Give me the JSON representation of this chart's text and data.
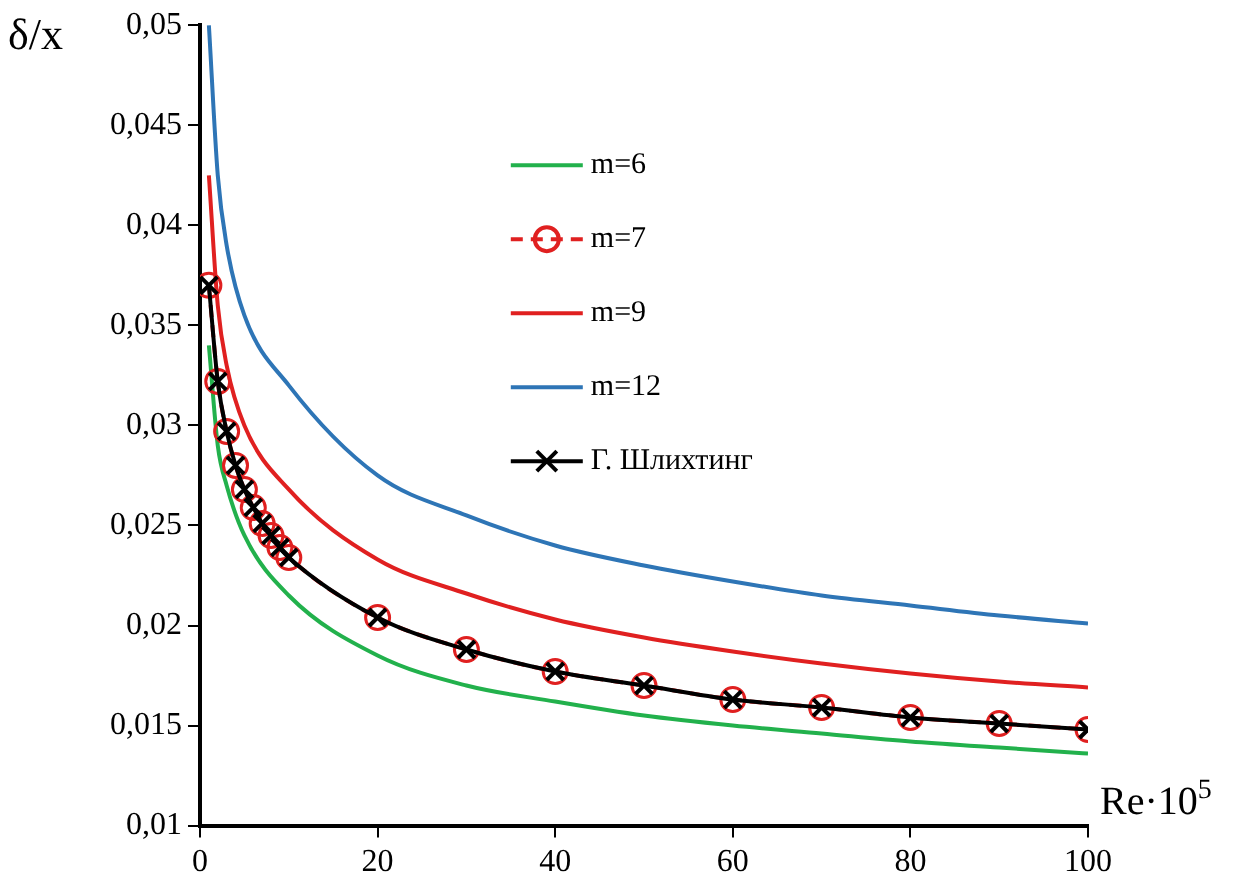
{
  "chart_data": {
    "type": "line",
    "xlabel": "Re·10$^{5}$",
    "ylabel": "δ/x",
    "xlim": [
      0,
      100
    ],
    "xticks": [
      0,
      20,
      40,
      60,
      80,
      100
    ],
    "ylim": [
      0.01,
      0.05
    ],
    "yticks": [
      {
        "value": 0.01,
        "label": "0,01"
      },
      {
        "value": 0.015,
        "label": "0,015"
      },
      {
        "value": 0.02,
        "label": "0,02"
      },
      {
        "value": 0.025,
        "label": "0,025"
      },
      {
        "value": 0.03,
        "label": "0,03"
      },
      {
        "value": 0.035,
        "label": "0,035"
      },
      {
        "value": 0.04,
        "label": "0,04"
      },
      {
        "value": 0.045,
        "label": "0,045"
      },
      {
        "value": 0.05,
        "label": "0,05"
      }
    ],
    "grid": false,
    "legend": "top right",
    "series": [
      {
        "name": "m=6",
        "color": "#22b14c",
        "marker": "none",
        "line_style": "solid",
        "x": [
          1,
          2,
          3,
          5,
          10,
          20,
          30,
          40,
          50,
          60,
          70,
          80,
          90,
          100
        ],
        "values": [
          0.034,
          0.029,
          0.027,
          0.0245,
          0.0215,
          0.0185,
          0.017,
          0.0162,
          0.0155,
          0.015,
          0.0146,
          0.0142,
          0.0139,
          0.0136
        ]
      },
      {
        "name": "m=7",
        "color": "#e02020",
        "marker": "circle",
        "line_style": "dashed",
        "x": [
          1,
          2,
          3,
          4,
          5,
          6,
          7,
          8,
          9,
          10,
          20,
          30,
          40,
          50,
          60,
          70,
          80,
          90,
          100
        ],
        "values": [
          0.037,
          0.0322,
          0.0297,
          0.028,
          0.0268,
          0.0259,
          0.0251,
          0.0245,
          0.0239,
          0.0234,
          0.0204,
          0.0188,
          0.0177,
          0.017,
          0.0163,
          0.0159,
          0.0154,
          0.0151,
          0.0148
        ]
      },
      {
        "name": "m=9",
        "color": "#e02020",
        "marker": "none",
        "line_style": "solid",
        "x": [
          1,
          2,
          3,
          5,
          10,
          20,
          30,
          40,
          50,
          60,
          70,
          80,
          90,
          100
        ],
        "values": [
          0.0425,
          0.036,
          0.033,
          0.03,
          0.0268,
          0.0233,
          0.0216,
          0.0203,
          0.0194,
          0.0187,
          0.0181,
          0.0176,
          0.0172,
          0.0169
        ]
      },
      {
        "name": "m=12",
        "color": "#2e75b6",
        "marker": "none",
        "line_style": "solid",
        "x": [
          1,
          2,
          3,
          5,
          10,
          20,
          30,
          40,
          50,
          60,
          70,
          80,
          90,
          100
        ],
        "values": [
          0.05,
          0.0425,
          0.039,
          0.0355,
          0.032,
          0.0275,
          0.0255,
          0.024,
          0.023,
          0.0222,
          0.0215,
          0.021,
          0.0205,
          0.0201
        ]
      },
      {
        "name": "Г. Шлихтинг",
        "color": "#000000",
        "marker": "cross",
        "line_style": "solid",
        "x": [
          1,
          2,
          3,
          4,
          5,
          6,
          7,
          8,
          9,
          10,
          20,
          30,
          40,
          50,
          60,
          70,
          80,
          90,
          100
        ],
        "values": [
          0.037,
          0.0322,
          0.0297,
          0.028,
          0.0268,
          0.0259,
          0.0251,
          0.0245,
          0.0239,
          0.0234,
          0.0204,
          0.0188,
          0.0177,
          0.017,
          0.0163,
          0.0159,
          0.0154,
          0.0151,
          0.0148
        ]
      }
    ]
  }
}
